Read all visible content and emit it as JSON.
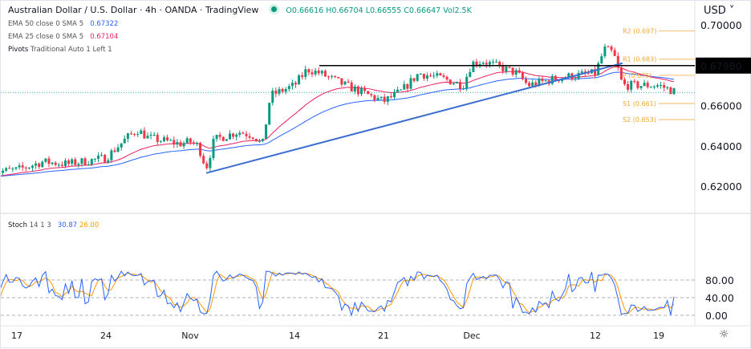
{
  "header": {
    "title": "Australian Dollar / U.S. Dollar · 4h · OANDA · TradingView",
    "status_color": "#089981",
    "ohlc": {
      "open": "O0.66616",
      "high": "H0.66704",
      "low": "L0.66555",
      "close": "C0.66647",
      "volume": "Vol2.5K"
    }
  },
  "indicators": [
    {
      "label": "EMA 50 close 0 SMA 5",
      "value": "0.67322",
      "color": "#2962ff"
    },
    {
      "label": "EMA 25 close 0 SMA 5",
      "value": "0.67104",
      "color": "#e91e63"
    },
    {
      "label": "Pivots",
      "params": "Traditional Auto 1 Left 1"
    }
  ],
  "stoch": {
    "label": "Stoch",
    "params": "14 1 3",
    "k": "30.87",
    "d": "26.00",
    "k_color": "#2962ff",
    "d_color": "#ff9800",
    "levels": [
      "80.00",
      "40.00",
      "0.00"
    ]
  },
  "price_axis": {
    "currency": "USD",
    "ticks": [
      "0.70000",
      "0.68000",
      "0.66000",
      "0.64000",
      "0.62000"
    ],
    "highlight": "0.67980"
  },
  "time_axis": {
    "ticks": [
      "17",
      "24",
      "Nov",
      "14",
      "21",
      "Dec",
      "12",
      "19"
    ]
  },
  "pivots": [
    {
      "label": "R2 (0.697)",
      "value": 0.697
    },
    {
      "label": "R1 (0.683)",
      "value": 0.683
    },
    {
      "label": "P (0.675)",
      "value": 0.675
    },
    {
      "label": "S1 (0.661)",
      "value": 0.661
    },
    {
      "label": "S2 (0.653)",
      "value": 0.653
    }
  ],
  "chart_data": {
    "type": "candlestick",
    "ylim": [
      0.612,
      0.705
    ],
    "resistance": 0.6798,
    "trendline": [
      [
        "2022-11-03",
        0.6265
      ],
      [
        "2022-12-15",
        0.681
      ]
    ],
    "closes": [
      [
        "2022-10-15",
        0.627
      ],
      [
        "2022-10-17",
        0.628
      ],
      [
        "2022-10-19",
        0.632
      ],
      [
        "2022-10-21",
        0.631
      ],
      [
        "2022-10-24",
        0.634
      ],
      [
        "2022-10-26",
        0.644
      ],
      [
        "2022-10-27",
        0.648
      ],
      [
        "2022-10-28",
        0.644
      ],
      [
        "2022-10-31",
        0.641
      ],
      [
        "2022-11-01",
        0.642
      ],
      [
        "2022-11-02",
        0.64
      ],
      [
        "2022-11-03",
        0.629
      ],
      [
        "2022-11-04",
        0.643
      ],
      [
        "2022-11-07",
        0.647
      ],
      [
        "2022-11-09",
        0.645
      ],
      [
        "2022-11-10",
        0.64
      ],
      [
        "2022-11-11",
        0.665
      ],
      [
        "2022-11-14",
        0.67
      ],
      [
        "2022-11-15",
        0.678
      ],
      [
        "2022-11-16",
        0.676
      ],
      [
        "2022-11-18",
        0.67
      ],
      [
        "2022-11-21",
        0.662
      ],
      [
        "2022-11-23",
        0.667
      ],
      [
        "2022-11-25",
        0.676
      ],
      [
        "2022-11-28",
        0.673
      ],
      [
        "2022-11-30",
        0.67
      ],
      [
        "2022-12-01",
        0.681
      ],
      [
        "2022-12-02",
        0.682
      ],
      [
        "2022-12-05",
        0.676
      ],
      [
        "2022-12-06",
        0.67
      ],
      [
        "2022-12-09",
        0.674
      ],
      [
        "2022-12-12",
        0.676
      ],
      [
        "2022-12-13",
        0.688
      ],
      [
        "2022-12-14",
        0.686
      ],
      [
        "2022-12-15",
        0.67
      ],
      [
        "2022-12-19",
        0.67
      ],
      [
        "2022-12-21",
        0.6665
      ]
    ]
  }
}
